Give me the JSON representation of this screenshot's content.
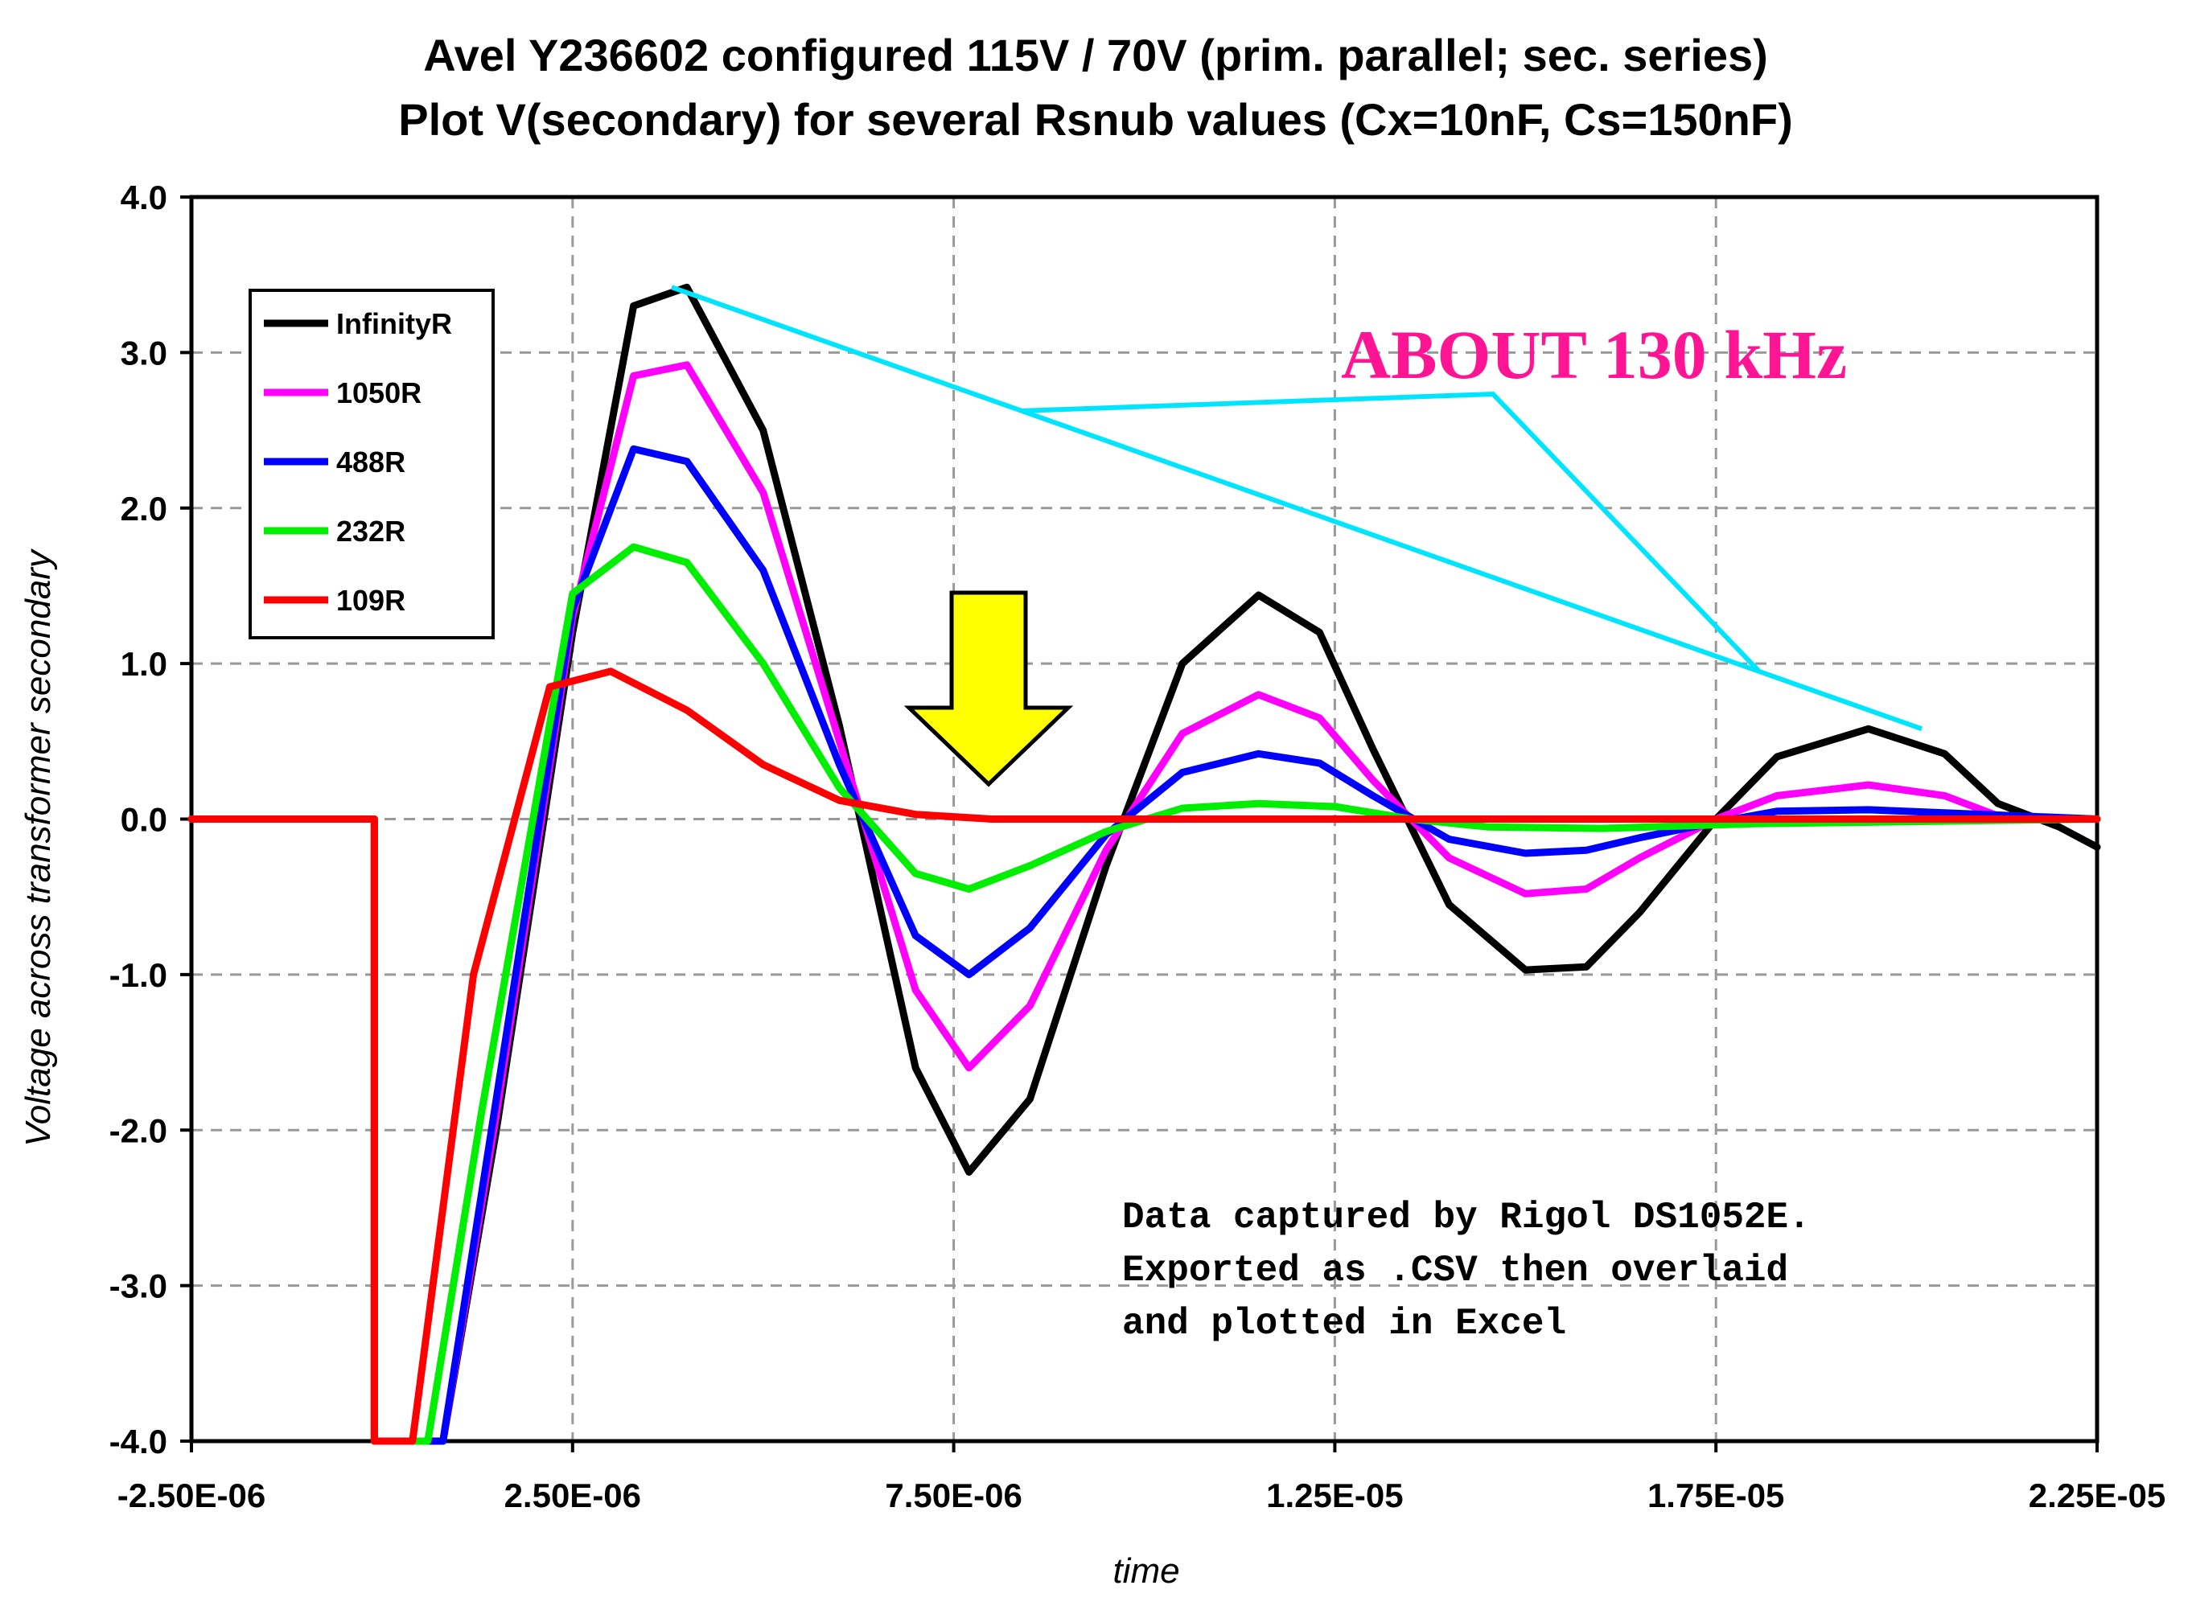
{
  "chart_data": {
    "type": "line",
    "title": "Avel Y236602 configured 115V / 70V (prim. parallel; sec. series)",
    "subtitle": "Plot V(secondary) for several Rsnub values (Cx=10nF, Cs=150nF)",
    "xlabel": "time",
    "ylabel": "Voltage across transformer secondary",
    "xlim": [
      -2.5e-06,
      2.25e-05
    ],
    "ylim": [
      -4.0,
      4.0
    ],
    "xticks": [
      -2.5e-06,
      2.5e-06,
      7.5e-06,
      1.25e-05,
      1.75e-05,
      2.25e-05
    ],
    "xtick_labels": [
      "-2.50E-06",
      "2.50E-06",
      "7.50E-06",
      "1.25E-05",
      "1.75E-05",
      "2.25E-05"
    ],
    "yticks": [
      -4.0,
      -3.0,
      -2.0,
      -1.0,
      0.0,
      1.0,
      2.0,
      3.0,
      4.0
    ],
    "ytick_labels": [
      "-4.0",
      "-3.0",
      "-2.0",
      "-1.0",
      "0.0",
      "1.0",
      "2.0",
      "3.0",
      "4.0"
    ],
    "grid": true,
    "legend_position": "top-left",
    "series": [
      {
        "name": "InfinityR",
        "color": "#000000",
        "x": [
          -2.5e-06,
          -1e-07,
          -1e-07,
          8e-07,
          1.5e-06,
          2.5e-06,
          3.3e-06,
          4e-06,
          5e-06,
          6e-06,
          7e-06,
          7.7e-06,
          8.5e-06,
          9.5e-06,
          1.05e-05,
          1.15e-05,
          1.23e-05,
          1.3e-05,
          1.4e-05,
          1.5e-05,
          1.58e-05,
          1.65e-05,
          1.75e-05,
          1.83e-05,
          1.95e-05,
          2.05e-05,
          2.12e-05,
          2.2e-05,
          2.25e-05
        ],
        "values": [
          0.0,
          0.0,
          -4.0,
          -4.0,
          -2.0,
          1.2,
          3.3,
          3.42,
          2.5,
          0.6,
          -1.6,
          -2.27,
          -1.8,
          -0.3,
          1.0,
          1.44,
          1.2,
          0.45,
          -0.55,
          -0.97,
          -0.95,
          -0.6,
          0.0,
          0.4,
          0.58,
          0.42,
          0.1,
          -0.05,
          -0.18
        ]
      },
      {
        "name": "1050R",
        "color": "#ff00ff",
        "x": [
          -2.5e-06,
          -1e-07,
          -1e-07,
          8e-07,
          1.5e-06,
          2.5e-06,
          3.3e-06,
          4e-06,
          5e-06,
          6e-06,
          7e-06,
          7.7e-06,
          8.5e-06,
          9.5e-06,
          1.05e-05,
          1.15e-05,
          1.23e-05,
          1.3e-05,
          1.4e-05,
          1.5e-05,
          1.58e-05,
          1.65e-05,
          1.75e-05,
          1.83e-05,
          1.95e-05,
          2.05e-05,
          2.12e-05,
          2.25e-05
        ],
        "values": [
          0.0,
          0.0,
          -4.0,
          -4.0,
          -1.9,
          1.3,
          2.85,
          2.92,
          2.1,
          0.5,
          -1.1,
          -1.6,
          -1.2,
          -0.2,
          0.55,
          0.8,
          0.65,
          0.25,
          -0.25,
          -0.48,
          -0.45,
          -0.25,
          0.0,
          0.15,
          0.22,
          0.15,
          0.02,
          0.0
        ]
      },
      {
        "name": "488R",
        "color": "#0000ff",
        "x": [
          -2.5e-06,
          -1e-07,
          -1e-07,
          8e-07,
          1.5e-06,
          2.5e-06,
          3.3e-06,
          4e-06,
          5e-06,
          6e-06,
          7e-06,
          7.7e-06,
          8.5e-06,
          9.5e-06,
          1.05e-05,
          1.15e-05,
          1.23e-05,
          1.3e-05,
          1.4e-05,
          1.5e-05,
          1.58e-05,
          1.65e-05,
          1.75e-05,
          1.83e-05,
          1.95e-05,
          2.05e-05,
          2.25e-05
        ],
        "values": [
          0.0,
          0.0,
          -4.0,
          -4.0,
          -1.8,
          1.35,
          2.38,
          2.3,
          1.6,
          0.35,
          -0.75,
          -1.0,
          -0.7,
          -0.1,
          0.3,
          0.42,
          0.36,
          0.15,
          -0.13,
          -0.22,
          -0.2,
          -0.12,
          -0.02,
          0.05,
          0.06,
          0.04,
          0.0
        ]
      },
      {
        "name": "232R",
        "color": "#00ee00",
        "x": [
          -2.5e-06,
          -1e-07,
          -1e-07,
          6e-07,
          1.3e-06,
          2.5e-06,
          3.3e-06,
          4e-06,
          5e-06,
          6e-06,
          7e-06,
          7.7e-06,
          8.5e-06,
          9.5e-06,
          1.05e-05,
          1.15e-05,
          1.25e-05,
          1.35e-05,
          1.45e-05,
          1.6e-05,
          1.8e-05,
          2.25e-05
        ],
        "values": [
          0.0,
          0.0,
          -4.0,
          -4.0,
          -1.9,
          1.45,
          1.75,
          1.65,
          1.0,
          0.2,
          -0.35,
          -0.45,
          -0.3,
          -0.08,
          0.07,
          0.1,
          0.08,
          0.0,
          -0.05,
          -0.06,
          -0.03,
          0.0
        ]
      },
      {
        "name": "109R",
        "color": "#ff0000",
        "x": [
          -2.5e-06,
          -1e-07,
          -1e-07,
          4e-07,
          1.2e-06,
          2.2e-06,
          3e-06,
          4e-06,
          5e-06,
          6e-06,
          7e-06,
          8e-06,
          2.25e-05
        ],
        "values": [
          0.0,
          0.0,
          -4.0,
          -4.0,
          -1.0,
          0.85,
          0.95,
          0.7,
          0.35,
          0.12,
          0.03,
          0.0,
          0.0
        ]
      }
    ]
  },
  "annotations": {
    "frequency_label": "ABOUT 130 kHz",
    "note_lines": [
      "Data captured by Rigol DS1052E.",
      "Exported as .CSV then overlaid",
      "and plotted in Excel"
    ],
    "envelope_color": "#00e5ff",
    "arrow_color": "#ffff00",
    "frequency_color": "#ff1493"
  }
}
